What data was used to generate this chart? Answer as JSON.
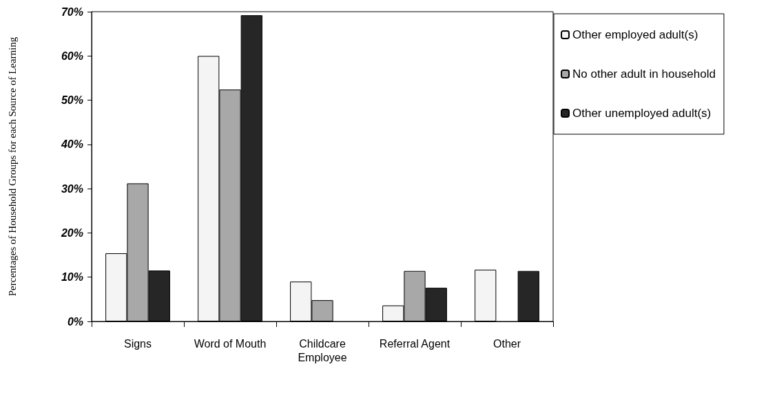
{
  "chart_data": {
    "type": "bar",
    "ylabel": "Percentages of Household Groups for each Source of Learning",
    "categories": [
      "Signs",
      "Word of Mouth",
      "Childcare\nEmployee",
      "Referral Agent",
      "Other"
    ],
    "series": [
      {
        "name": "Other employed adult(s)",
        "color": "#f4f4f4",
        "values": [
          15.4,
          60.0,
          9.0,
          3.6,
          11.7
        ]
      },
      {
        "name": "No other adult in household",
        "color": "#a8a8a8",
        "values": [
          31.2,
          52.4,
          4.8,
          11.4,
          0
        ]
      },
      {
        "name": "Other unemployed adult(s)",
        "color": "#262626",
        "values": [
          11.5,
          69.2,
          0,
          7.6,
          11.4
        ]
      }
    ],
    "ylim": [
      0,
      70
    ],
    "yticks": [
      {
        "value": 0,
        "label": "0%"
      },
      {
        "value": 10,
        "label": "10%"
      },
      {
        "value": 20,
        "label": "20%"
      },
      {
        "value": 30,
        "label": "30%"
      },
      {
        "value": 40,
        "label": "40%"
      },
      {
        "value": 50,
        "label": "50%"
      },
      {
        "value": 60,
        "label": "60%"
      },
      {
        "value": 70,
        "label": "70%"
      }
    ],
    "grid": false,
    "legend": "right"
  }
}
